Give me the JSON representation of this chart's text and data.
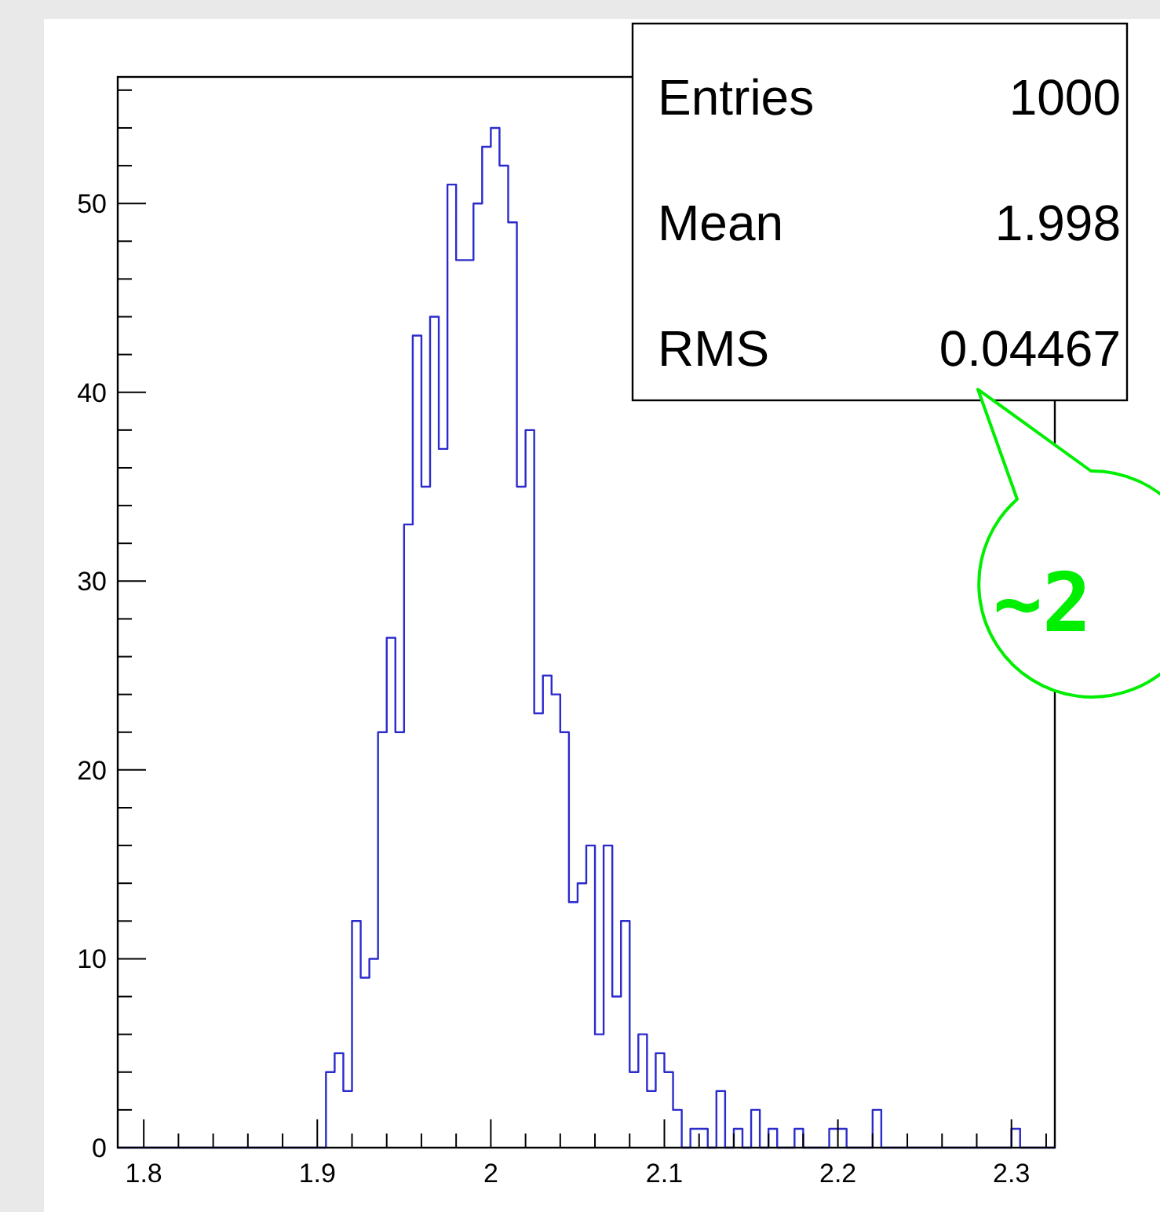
{
  "chart_data": {
    "type": "histogram",
    "bins": [
      1.785,
      1.79,
      1.795,
      1.8,
      1.805,
      1.81,
      1.815,
      1.82,
      1.825,
      1.83,
      1.835,
      1.84,
      1.845,
      1.85,
      1.855,
      1.86,
      1.865,
      1.87,
      1.875,
      1.88,
      1.885,
      1.89,
      1.895,
      1.9,
      1.905,
      1.91,
      1.915,
      1.92,
      1.925,
      1.93,
      1.935,
      1.94,
      1.945,
      1.95,
      1.955,
      1.96,
      1.965,
      1.97,
      1.975,
      1.98,
      1.985,
      1.99,
      1.995,
      2.0,
      2.005,
      2.01,
      2.015,
      2.02,
      2.025,
      2.03,
      2.035,
      2.04,
      2.045,
      2.05,
      2.055,
      2.06,
      2.065,
      2.07,
      2.075,
      2.08,
      2.085,
      2.09,
      2.095,
      2.1,
      2.105,
      2.11,
      2.115,
      2.12,
      2.125,
      2.13,
      2.135,
      2.14,
      2.145,
      2.15,
      2.155,
      2.16,
      2.165,
      2.17,
      2.175,
      2.18,
      2.185,
      2.19,
      2.195,
      2.2,
      2.205,
      2.21,
      2.215,
      2.22,
      2.225,
      2.23,
      2.235,
      2.24,
      2.245,
      2.25,
      2.255,
      2.26,
      2.265,
      2.27,
      2.275,
      2.28,
      2.285,
      2.29,
      2.295,
      2.3,
      2.305,
      2.31,
      2.315,
      2.32,
      2.325
    ],
    "values": [
      0,
      0,
      0,
      0,
      0,
      0,
      0,
      0,
      0,
      0,
      0,
      0,
      0,
      0,
      0,
      0,
      0,
      0,
      0,
      0,
      0,
      0,
      0,
      0,
      4,
      5,
      3,
      12,
      9,
      10,
      22,
      27,
      22,
      33,
      43,
      35,
      44,
      37,
      51,
      47,
      47,
      50,
      53,
      54,
      52,
      49,
      35,
      38,
      23,
      25,
      24,
      22,
      13,
      14,
      16,
      6,
      16,
      8,
      12,
      4,
      6,
      3,
      5,
      4,
      2,
      0,
      1,
      1,
      0,
      3,
      0,
      1,
      0,
      2,
      0,
      1,
      0,
      0,
      1,
      0,
      0,
      0,
      1,
      1,
      0,
      0,
      0,
      2,
      0,
      0,
      0,
      0,
      0,
      0,
      0,
      0,
      0,
      0,
      0,
      0,
      0,
      0,
      0,
      1,
      0,
      0,
      0,
      0
    ],
    "color": "#2b2bcc",
    "xlim": [
      1.785,
      2.325
    ],
    "xticks": [
      1.8,
      {
        "value": 1.82,
        "label": null
      },
      {
        "value": 1.84,
        "label": null
      },
      {
        "value": 1.86,
        "label": null
      },
      {
        "value": 1.88,
        "label": null
      },
      1.9,
      {
        "value": 1.92,
        "label": null
      },
      {
        "value": 1.94,
        "label": null
      },
      {
        "value": 1.96,
        "label": null
      },
      {
        "value": 1.98,
        "label": null
      },
      2,
      {
        "value": 2.02,
        "label": null
      },
      {
        "value": 2.04,
        "label": null
      },
      {
        "value": 2.06,
        "label": null
      },
      {
        "value": 2.08,
        "label": null
      },
      2.1,
      {
        "value": 2.12,
        "label": null
      },
      {
        "value": 2.14,
        "label": null
      },
      {
        "value": 2.16,
        "label": null
      },
      {
        "value": 2.18,
        "label": null
      },
      2.2,
      {
        "value": 2.22,
        "label": null
      },
      {
        "value": 2.24,
        "label": null
      },
      {
        "value": 2.26,
        "label": null
      },
      {
        "value": 2.28,
        "label": null
      },
      2.3,
      {
        "value": 2.32,
        "label": null
      }
    ],
    "ylim": [
      0,
      56.7
    ],
    "yticks": [
      0,
      {
        "value": 2,
        "label": null
      },
      {
        "value": 4,
        "label": null
      },
      {
        "value": 6,
        "label": null
      },
      {
        "value": 8,
        "label": null
      },
      10,
      {
        "value": 12,
        "label": null
      },
      {
        "value": 14,
        "label": null
      },
      {
        "value": 16,
        "label": null
      },
      {
        "value": 18,
        "label": null
      },
      20,
      {
        "value": 22,
        "label": null
      },
      {
        "value": 24,
        "label": null
      },
      {
        "value": 26,
        "label": null
      },
      {
        "value": 28,
        "label": null
      },
      30,
      {
        "value": 32,
        "label": null
      },
      {
        "value": 34,
        "label": null
      },
      {
        "value": 36,
        "label": null
      },
      {
        "value": 38,
        "label": null
      },
      40,
      {
        "value": 42,
        "label": null
      },
      {
        "value": 44,
        "label": null
      },
      {
        "value": 46,
        "label": null
      },
      {
        "value": 48,
        "label": null
      },
      50,
      {
        "value": 52,
        "label": null
      },
      {
        "value": 54,
        "label": null
      },
      {
        "value": 56,
        "label": null
      }
    ],
    "grid": false,
    "annotations": [
      "Entries",
      "1000",
      "Mean",
      "1.998",
      "RMS",
      "0.04467",
      "~2"
    ]
  }
}
